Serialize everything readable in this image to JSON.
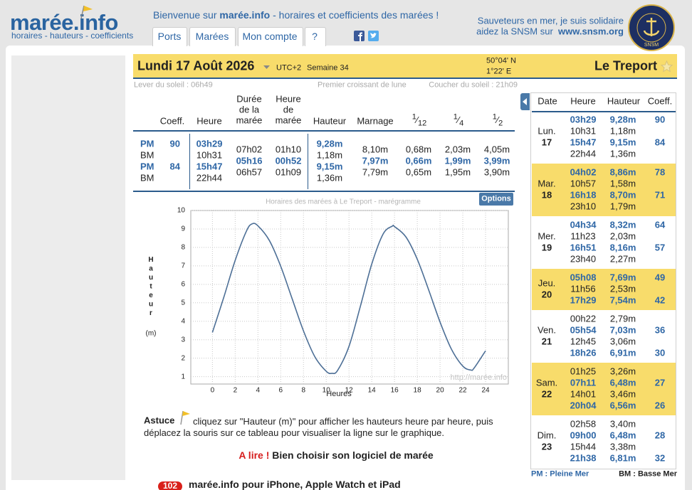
{
  "header": {
    "logo": "marée.info",
    "tagline": "horaires - hauteurs - coefficients",
    "welcome": {
      "prefix": "Bienvenue sur ",
      "brand": "marée.info",
      "suffix": " - horaires et coefficients des marées !"
    },
    "nav": [
      "Ports",
      "Marées",
      "Mon compte",
      "?"
    ],
    "snsm": {
      "line1": "Sauveteurs en mer, je suis solidaire",
      "line2": "aidez la SNSM sur",
      "link": "www.snsm.org",
      "badge": "SNSM"
    }
  },
  "day": {
    "date": "Lundi 17 Août 2026",
    "utc": "UTC+2",
    "week": "Semaine 34",
    "lat": "50°04' N",
    "lon": "1°22' E",
    "port": "Le Treport",
    "sunrise": "Lever du soleil : 06h49",
    "moon": "Premier croissant de lune",
    "sunset": "Coucher du soleil : 21h09"
  },
  "tide_table": {
    "columns": {
      "coef": "Coeff.",
      "time": "Heure",
      "duration": "Durée de la marée",
      "tide_hour": "Heure de marée",
      "height": "Hauteur",
      "range": "Marnage",
      "twelfth": [
        "1",
        "12"
      ],
      "quarter": [
        "1",
        "4"
      ],
      "half": [
        "1",
        "2"
      ]
    },
    "tides": [
      {
        "type": "PM",
        "coef": 90,
        "time": "03h29",
        "height": "9,28m"
      },
      {
        "type": "BM",
        "time": "10h31",
        "height": "1,18m"
      },
      {
        "type": "PM",
        "coef": 84,
        "time": "15h47",
        "height": "9,15m"
      },
      {
        "type": "BM",
        "time": "22h44",
        "height": "1,36m"
      }
    ],
    "intervals": [
      {
        "duration": "07h02",
        "tide_hour": "01h10",
        "range": "8,10m",
        "twelfth": "0,68m",
        "quarter": "2,03m",
        "half": "4,05m"
      },
      {
        "duration": "05h16",
        "tide_hour": "00h52",
        "range": "7,97m",
        "twelfth": "0,66m",
        "quarter": "1,99m",
        "half": "3,99m"
      },
      {
        "duration": "06h57",
        "tide_hour": "01h09",
        "range": "7,79m",
        "twelfth": "0,65m",
        "quarter": "1,95m",
        "half": "3,90m"
      }
    ]
  },
  "options": "Options",
  "chart_data": {
    "type": "line",
    "title": "Horaires des marées à Le Treport - marégramme",
    "x_label": "Heures",
    "y_label": "Hauteur",
    "y_unit": "(m)",
    "watermark": "http://marée.info",
    "x": [
      0,
      1,
      2,
      3,
      3.5,
      4,
      5,
      6,
      7,
      8,
      9,
      10,
      10.5,
      11,
      12,
      13,
      14,
      15,
      15.8,
      16,
      17,
      18,
      19,
      20,
      21,
      22,
      22.7,
      23,
      24
    ],
    "values": [
      3.4,
      5.3,
      7.3,
      8.9,
      9.28,
      9.17,
      8.38,
      6.98,
      5.23,
      3.48,
      2.08,
      1.29,
      1.18,
      1.34,
      2.64,
      4.81,
      7.1,
      8.73,
      9.15,
      9.13,
      8.57,
      7.36,
      5.7,
      3.96,
      2.49,
      1.57,
      1.36,
      1.47,
      2.4
    ],
    "color": "#4d6f96",
    "xlim": [
      -1.9,
      26
    ],
    "ylim": [
      0.6,
      10
    ],
    "xticks": [
      0,
      2,
      4,
      6,
      8,
      10,
      12,
      14,
      16,
      18,
      20,
      22,
      24
    ],
    "yticks": [
      1,
      2,
      3,
      4,
      5,
      6,
      7,
      8,
      9,
      10
    ],
    "grid": true
  },
  "tip": {
    "label": "Astuce",
    "text": "cliquez sur \"Hauteur (m)\" pour afficher les hauteurs heure par heure, puis déplacez la souris sur ce tableau pour visualiser la ligne sur le graphique."
  },
  "read": {
    "label": "A lire !",
    "link": "Bien choisir son logiciel de marée"
  },
  "app": {
    "badge": "102",
    "text": "marée.info pour iPhone, Apple Watch et iPad"
  },
  "week": {
    "columns": [
      "Date",
      "Heure",
      "Hauteur",
      "Coeff."
    ],
    "days": [
      {
        "day": "Lun.",
        "date": "17",
        "tides": [
          {
            "time": "03h29",
            "height": "9,28m",
            "coef": 90
          },
          {
            "time": "10h31",
            "height": "1,18m"
          },
          {
            "time": "15h47",
            "height": "9,15m",
            "coef": 84
          },
          {
            "time": "22h44",
            "height": "1,36m"
          }
        ]
      },
      {
        "day": "Mar.",
        "date": "18",
        "tides": [
          {
            "time": "04h02",
            "height": "8,86m",
            "coef": 78
          },
          {
            "time": "10h57",
            "height": "1,58m"
          },
          {
            "time": "16h18",
            "height": "8,70m",
            "coef": 71
          },
          {
            "time": "23h10",
            "height": "1,79m"
          }
        ]
      },
      {
        "day": "Mer.",
        "date": "19",
        "tides": [
          {
            "time": "04h34",
            "height": "8,32m",
            "coef": 64
          },
          {
            "time": "11h23",
            "height": "2,03m"
          },
          {
            "time": "16h51",
            "height": "8,16m",
            "coef": 57
          },
          {
            "time": "23h40",
            "height": "2,27m"
          }
        ]
      },
      {
        "day": "Jeu.",
        "date": "20",
        "tides": [
          {
            "time": "05h08",
            "height": "7,69m",
            "coef": 49
          },
          {
            "time": "11h56",
            "height": "2,53m"
          },
          {
            "time": "17h29",
            "height": "7,54m",
            "coef": 42
          }
        ]
      },
      {
        "day": "Ven.",
        "date": "21",
        "tides": [
          {
            "time": "00h22",
            "height": "2,79m"
          },
          {
            "time": "05h54",
            "height": "7,03m",
            "coef": 36
          },
          {
            "time": "12h45",
            "height": "3,06m"
          },
          {
            "time": "18h26",
            "height": "6,91m",
            "coef": 30
          }
        ]
      },
      {
        "day": "Sam.",
        "date": "22",
        "tides": [
          {
            "time": "01h25",
            "height": "3,26m"
          },
          {
            "time": "07h11",
            "height": "6,48m",
            "coef": 27
          },
          {
            "time": "14h01",
            "height": "3,46m"
          },
          {
            "time": "20h04",
            "height": "6,56m",
            "coef": 26
          }
        ]
      },
      {
        "day": "Dim.",
        "date": "23",
        "tides": [
          {
            "time": "02h58",
            "height": "3,40m"
          },
          {
            "time": "09h00",
            "height": "6,48m",
            "coef": 28
          },
          {
            "time": "15h44",
            "height": "3,38m"
          },
          {
            "time": "21h38",
            "height": "6,81m",
            "coef": 32
          }
        ]
      }
    ],
    "legend": {
      "pm": "PM : Pleine Mer",
      "bm": "BM : Basse Mer"
    }
  }
}
